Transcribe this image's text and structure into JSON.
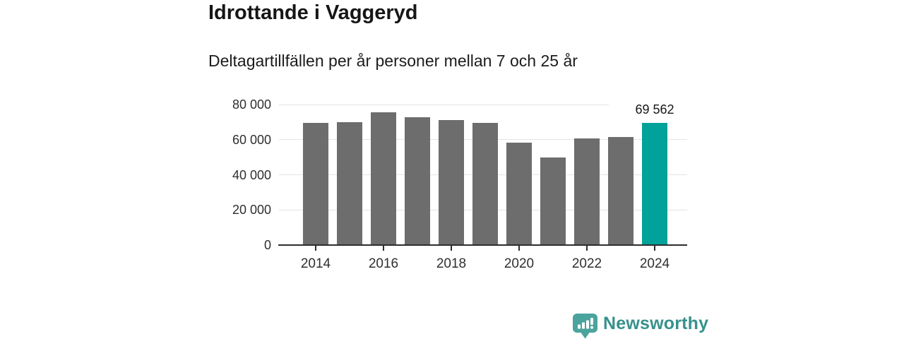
{
  "header": {
    "title": "Idrottande i Vaggeryd",
    "subtitle": "Deltagartillfällen per år personer mellan 7 och 25 år"
  },
  "chart_data": {
    "type": "bar",
    "title": "Idrottande i Vaggeryd",
    "subtitle": "Deltagartillfällen per år personer mellan 7 och 25 år",
    "categories": [
      2014,
      2015,
      2016,
      2017,
      2018,
      2019,
      2020,
      2021,
      2022,
      2023,
      2024
    ],
    "values": [
      69600,
      69900,
      75400,
      72700,
      71300,
      69600,
      58400,
      49800,
      60700,
      61600,
      69562
    ],
    "highlight_index": 10,
    "highlight_value_label": "69 562",
    "ylim": [
      0,
      80000
    ],
    "yticks": [
      0,
      20000,
      40000,
      60000,
      80000
    ],
    "ytick_labels": [
      "0",
      "20 000",
      "40 000",
      "60 000",
      "80 000"
    ],
    "xtick_labels": [
      "2014",
      "2016",
      "2018",
      "2020",
      "2022",
      "2024"
    ],
    "bar_color": "#6e6d6e",
    "highlight_color": "#00a29a",
    "grid": true,
    "legend": "none"
  },
  "footer": {
    "brand": "Newsworthy",
    "brand_color": "#37918c",
    "icon": "newsworthy-speech-bubble-bar-chart-icon",
    "icon_color": "#4aa49d"
  }
}
